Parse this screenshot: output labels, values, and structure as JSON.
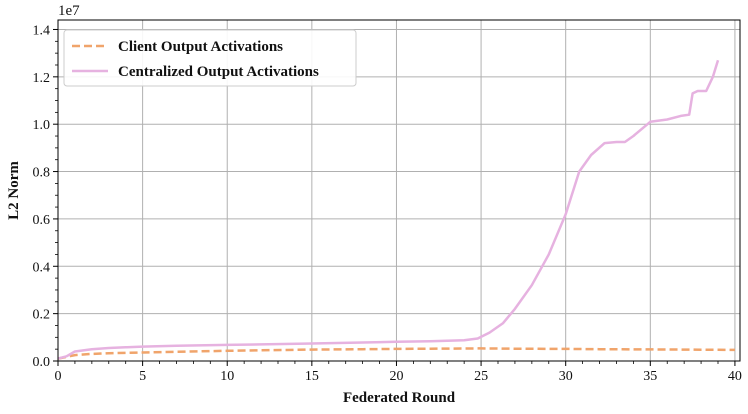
{
  "chart_data": {
    "type": "line",
    "xlabel": "Federated Round",
    "ylabel": "L2 Norm",
    "y_offset_label": "1e7",
    "xlim": [
      0,
      40.3
    ],
    "ylim": [
      0,
      1.44
    ],
    "xticks": [
      0,
      5,
      10,
      15,
      20,
      25,
      30,
      35,
      40
    ],
    "yticks": [
      0.0,
      0.2,
      0.4,
      0.6,
      0.8,
      1.0,
      1.2,
      1.4
    ],
    "ytick_labels": [
      "0.0",
      "0.2",
      "0.4",
      "0.6",
      "0.8",
      "1.0",
      "1.2",
      "1.4"
    ],
    "grid": true,
    "legend_position": "top-left",
    "series": [
      {
        "name": "Client Output Activations",
        "color": "#f0a46b",
        "style": "dashed",
        "x": [
          0,
          1,
          2,
          3,
          5,
          7,
          10,
          12,
          15,
          18,
          20,
          22,
          25,
          27,
          30,
          32,
          35,
          37,
          40
        ],
        "y": [
          0.01,
          0.025,
          0.03,
          0.033,
          0.036,
          0.039,
          0.043,
          0.045,
          0.048,
          0.05,
          0.051,
          0.052,
          0.053,
          0.052,
          0.051,
          0.05,
          0.049,
          0.048,
          0.047
        ]
      },
      {
        "name": "Centralized Output Activations",
        "color": "#e6b2e0",
        "style": "solid",
        "x": [
          0,
          0.5,
          1,
          2,
          3,
          4,
          5,
          7,
          10,
          12,
          15,
          18,
          20,
          22,
          24,
          24.8,
          25.5,
          26.3,
          27,
          28,
          29,
          30,
          30.8,
          31.5,
          32.3,
          33,
          33.5,
          34,
          35,
          36,
          36.8,
          37.3,
          37.5,
          37.8,
          38.3,
          38.7,
          39
        ],
        "y": [
          0.01,
          0.02,
          0.04,
          0.05,
          0.055,
          0.058,
          0.061,
          0.064,
          0.068,
          0.07,
          0.074,
          0.078,
          0.081,
          0.083,
          0.088,
          0.095,
          0.12,
          0.16,
          0.22,
          0.32,
          0.45,
          0.62,
          0.8,
          0.87,
          0.92,
          0.925,
          0.925,
          0.95,
          1.01,
          1.02,
          1.035,
          1.04,
          1.13,
          1.14,
          1.14,
          1.2,
          1.27
        ]
      }
    ]
  }
}
